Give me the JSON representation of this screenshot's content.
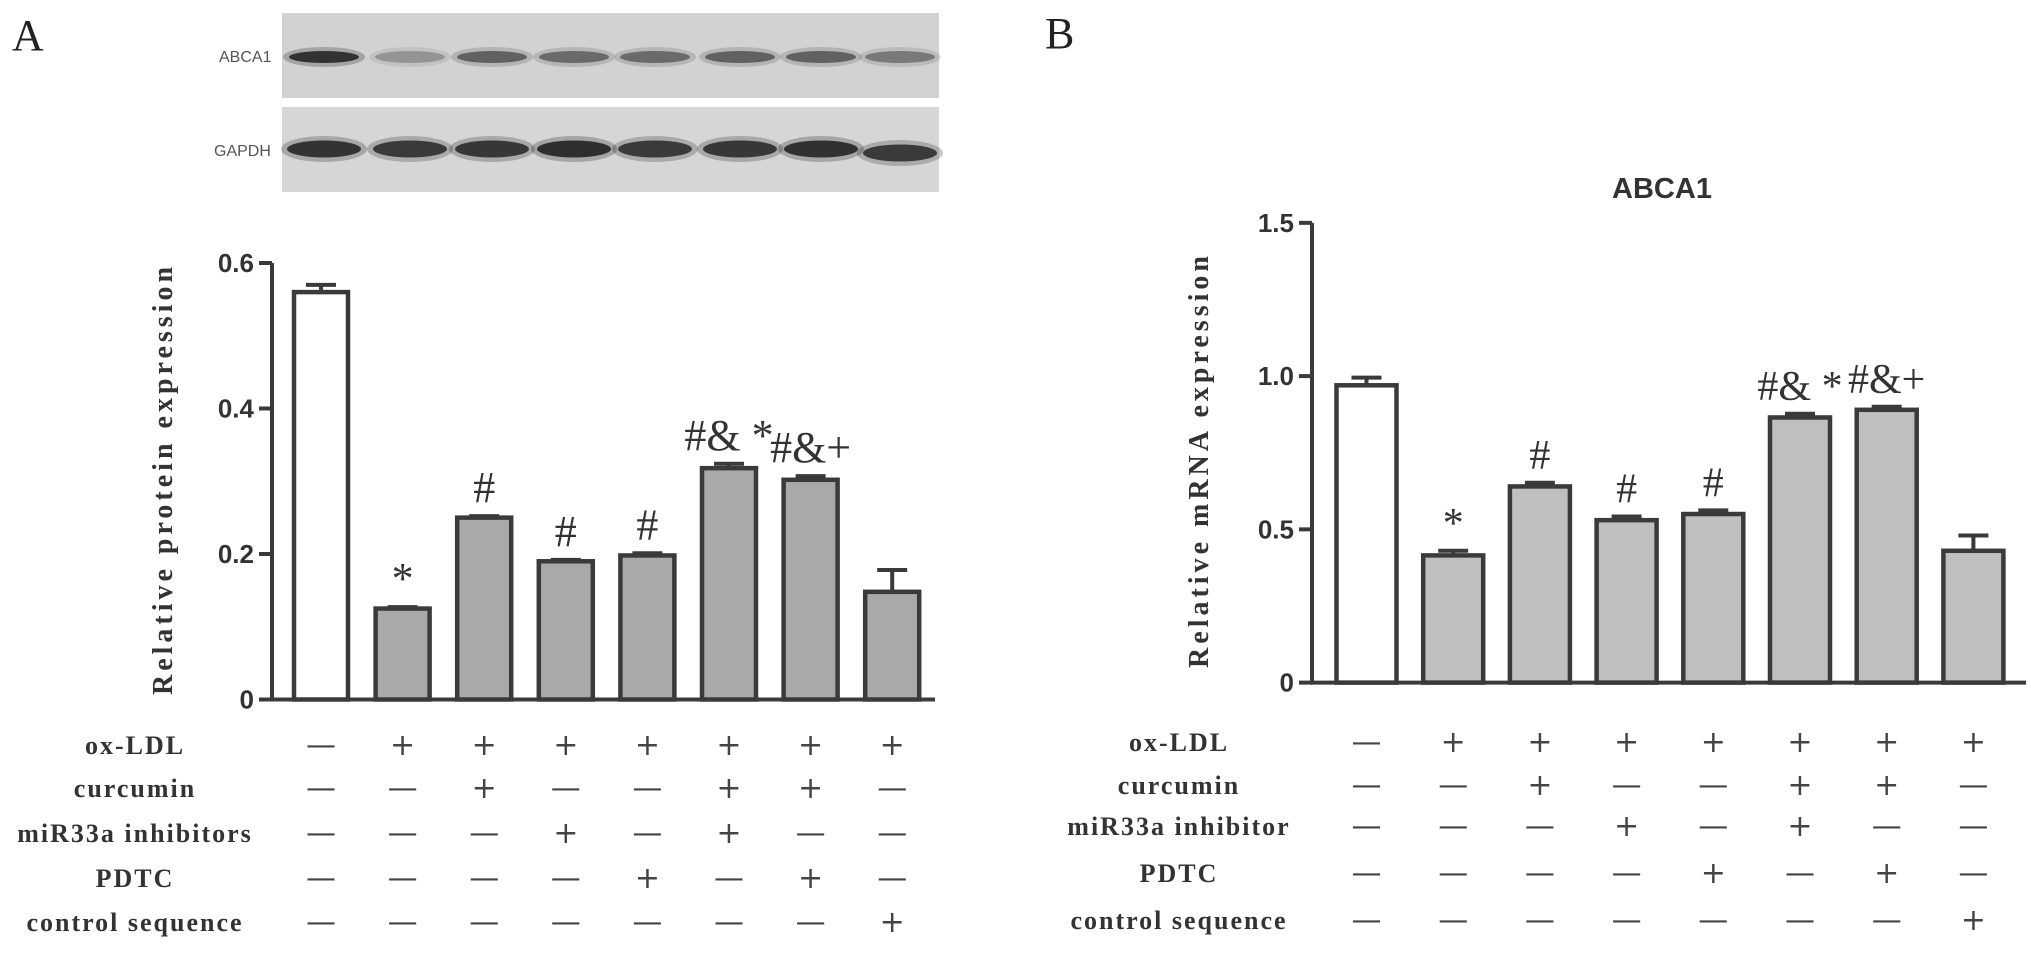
{
  "western_blot": {
    "bands": [
      {
        "label": "ABCA1"
      },
      {
        "label": "GAPDH"
      }
    ]
  },
  "chart_data": [
    {
      "type": "bar",
      "panel_label": "A",
      "ylabel": "Relative protein expression",
      "ylim": [
        0,
        0.6
      ],
      "yticks": [
        0,
        0.2,
        0.4,
        0.6
      ],
      "ytick_labels": [
        "0",
        "0.2",
        "0.4",
        "0.6"
      ],
      "grid": false,
      "values": [
        0.56,
        0.125,
        0.25,
        0.19,
        0.198,
        0.318,
        0.302,
        0.148
      ],
      "errors": [
        0.01,
        0.002,
        0.002,
        0.002,
        0.003,
        0.006,
        0.005,
        0.03
      ],
      "annotations": [
        "",
        "*",
        "#",
        "#",
        "#",
        "#& *",
        "#&+",
        ""
      ],
      "bar_colors": [
        "#ffffff",
        "#a9a9a9",
        "#a9a9a9",
        "#a9a9a9",
        "#a9a9a9",
        "#a9a9a9",
        "#a9a9a9",
        "#a9a9a9"
      ],
      "treatment_rows": [
        {
          "label": "ox-LDL",
          "values": [
            "—",
            "+",
            "+",
            "+",
            "+",
            "+",
            "+",
            "+"
          ]
        },
        {
          "label": "curcumin",
          "values": [
            "—",
            "—",
            "+",
            "—",
            "—",
            "+",
            "+",
            "—"
          ]
        },
        {
          "label": "miR33a inhibitors",
          "values": [
            "—",
            "—",
            "—",
            "+",
            "—",
            "+",
            "—",
            "—"
          ]
        },
        {
          "label": "PDTC",
          "values": [
            "—",
            "—",
            "—",
            "—",
            "+",
            "—",
            "+",
            "—"
          ]
        },
        {
          "label": "control sequence",
          "values": [
            "—",
            "—",
            "—",
            "—",
            "—",
            "—",
            "—",
            "+"
          ]
        }
      ]
    },
    {
      "type": "bar",
      "panel_label": "B",
      "title": "ABCA1",
      "ylabel": "Relative mRNA expression",
      "ylim": [
        0,
        1.5
      ],
      "yticks": [
        0,
        0.5,
        1.0,
        1.5
      ],
      "ytick_labels": [
        "0",
        "0.5",
        "1.0",
        "1.5"
      ],
      "grid": false,
      "values": [
        0.97,
        0.415,
        0.64,
        0.53,
        0.55,
        0.865,
        0.89,
        0.43
      ],
      "errors": [
        0.025,
        0.015,
        0.012,
        0.012,
        0.012,
        0.012,
        0.01,
        0.05
      ],
      "annotations": [
        "",
        "*",
        "#",
        "#",
        "#",
        "#& *",
        "#&+",
        ""
      ],
      "bar_colors": [
        "#ffffff",
        "#bfbfbf",
        "#bfbfbf",
        "#bfbfbf",
        "#bfbfbf",
        "#bfbfbf",
        "#bfbfbf",
        "#bfbfbf"
      ],
      "treatment_rows": [
        {
          "label": "ox-LDL",
          "values": [
            "—",
            "+",
            "+",
            "+",
            "+",
            "+",
            "+",
            "+"
          ]
        },
        {
          "label": "curcumin",
          "values": [
            "—",
            "—",
            "+",
            "—",
            "—",
            "+",
            "+",
            "—"
          ]
        },
        {
          "label": "miR33a inhibitor",
          "values": [
            "—",
            "—",
            "—",
            "+",
            "—",
            "+",
            "—",
            "—"
          ]
        },
        {
          "label": "PDTC",
          "values": [
            "—",
            "—",
            "—",
            "—",
            "+",
            "—",
            "+",
            "—"
          ]
        },
        {
          "label": "control sequence",
          "values": [
            "—",
            "—",
            "—",
            "—",
            "—",
            "—",
            "—",
            "+"
          ]
        }
      ]
    }
  ]
}
